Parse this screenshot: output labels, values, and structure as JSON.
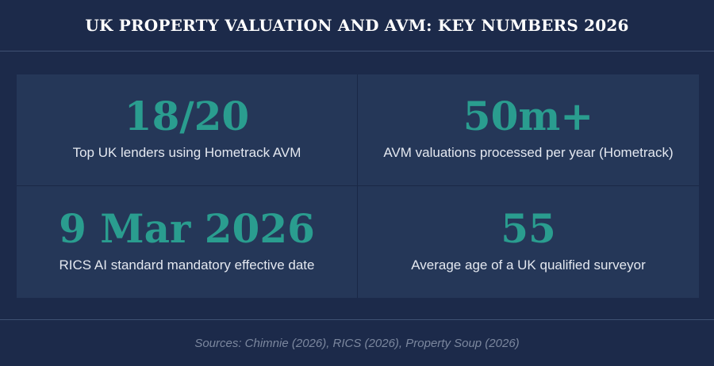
{
  "header": {
    "title": "UK PROPERTY VALUATION AND AVM: KEY NUMBERS 2026"
  },
  "stats": [
    {
      "value": "18/20",
      "label": "Top UK lenders using Hometrack AVM"
    },
    {
      "value": "50m+",
      "label": "AVM valuations processed per year (Hometrack)"
    },
    {
      "value": "9 Mar 2026",
      "label": "RICS AI standard mandatory effective date"
    },
    {
      "value": "55",
      "label": "Average age of a UK qualified surveyor"
    }
  ],
  "footer": {
    "sources": "Sources: Chimnie (2026), RICS (2026), Property Soup (2026)"
  },
  "colors": {
    "background": "#1c2a4a",
    "card": "#253758",
    "accent": "#2a9d8f",
    "title": "#ffffff",
    "label": "#e4e8f0",
    "source": "#7b879e"
  }
}
